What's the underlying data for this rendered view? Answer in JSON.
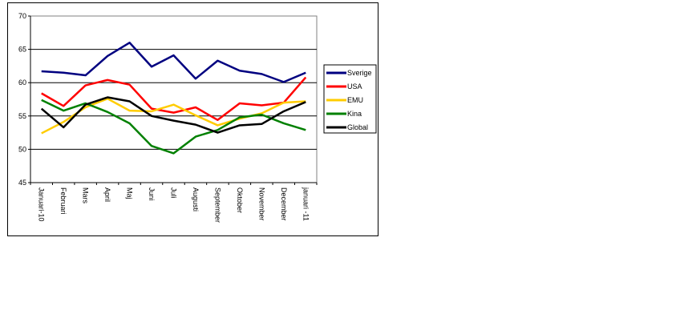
{
  "chart_data": {
    "type": "line",
    "title": "",
    "xlabel": "",
    "ylabel": "",
    "ylim": [
      45,
      70
    ],
    "yticks": [
      45,
      50,
      55,
      60,
      65,
      70
    ],
    "categories": [
      "Januari-10",
      "Februari",
      "Mars",
      "April",
      "Maj",
      "Juni",
      "Juli",
      "Augusti",
      "September",
      "Oktober",
      "November",
      "December",
      "januari -11"
    ],
    "legend_position": "right",
    "grid": true,
    "series": [
      {
        "name": "Sverige",
        "color": "#000080",
        "values": [
          61.7,
          61.5,
          61.1,
          64.0,
          66.0,
          62.4,
          64.1,
          60.6,
          63.3,
          61.8,
          61.3,
          60.1,
          61.5
        ]
      },
      {
        "name": "USA",
        "color": "#ff0000",
        "values": [
          58.4,
          56.5,
          59.6,
          60.4,
          59.7,
          56.1,
          55.5,
          56.3,
          54.4,
          56.9,
          56.6,
          57.0,
          60.8
        ]
      },
      {
        "name": "EMU",
        "color": "#ffcc00",
        "values": [
          52.4,
          54.1,
          56.3,
          57.6,
          55.8,
          55.7,
          56.7,
          55.1,
          53.6,
          54.6,
          55.4,
          57.0,
          57.2
        ]
      },
      {
        "name": "Kina",
        "color": "#008000",
        "values": [
          57.4,
          55.8,
          56.9,
          55.6,
          53.9,
          50.5,
          49.4,
          51.9,
          52.9,
          54.8,
          55.2,
          53.9,
          52.9
        ]
      },
      {
        "name": "Global",
        "color": "#000000",
        "values": [
          56.1,
          53.3,
          56.7,
          57.8,
          57.2,
          55.0,
          54.3,
          53.7,
          52.5,
          53.6,
          53.8,
          55.7,
          57.1
        ]
      }
    ]
  }
}
